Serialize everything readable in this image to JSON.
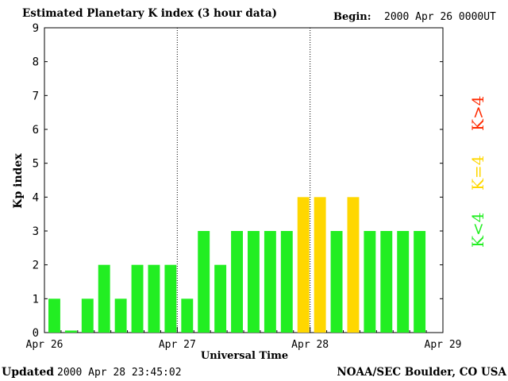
{
  "header": {
    "title": "Estimated Planetary K index (3 hour data)",
    "begin_label": "Begin:",
    "begin_value": "2000 Apr 26 0000UT"
  },
  "footer": {
    "updated_label": "Updated",
    "updated_value": "2000 Apr 28 23:45:02",
    "credit": "NOAA/SEC Boulder, CO USA"
  },
  "legend": [
    {
      "label": "K>4",
      "color": "#ff2a00"
    },
    {
      "label": "K=4",
      "color": "#ffd700"
    },
    {
      "label": "K<4",
      "color": "#22ee22"
    }
  ],
  "chart_data": {
    "type": "bar",
    "title": "Estimated Planetary K index (3 hour data)",
    "xlabel": "Universal Time",
    "ylabel": "Kp index",
    "ylim": [
      0,
      9
    ],
    "yticks": [
      "0",
      "1",
      "2",
      "3",
      "4",
      "5",
      "6",
      "7",
      "8",
      "9"
    ],
    "xticks": [
      "Apr 26",
      "Apr 27",
      "Apr 28",
      "Apr 29"
    ],
    "x_interval_hours": 3,
    "values": [
      1,
      0,
      1,
      2,
      1,
      2,
      2,
      2,
      1,
      3,
      2,
      3,
      3,
      3,
      3,
      4,
      4,
      3,
      4,
      3,
      3,
      3,
      3
    ],
    "colors": {
      "below_4": "#22ee22",
      "equal_4": "#ffd700",
      "above_4": "#ff2a00"
    },
    "grid": false
  }
}
